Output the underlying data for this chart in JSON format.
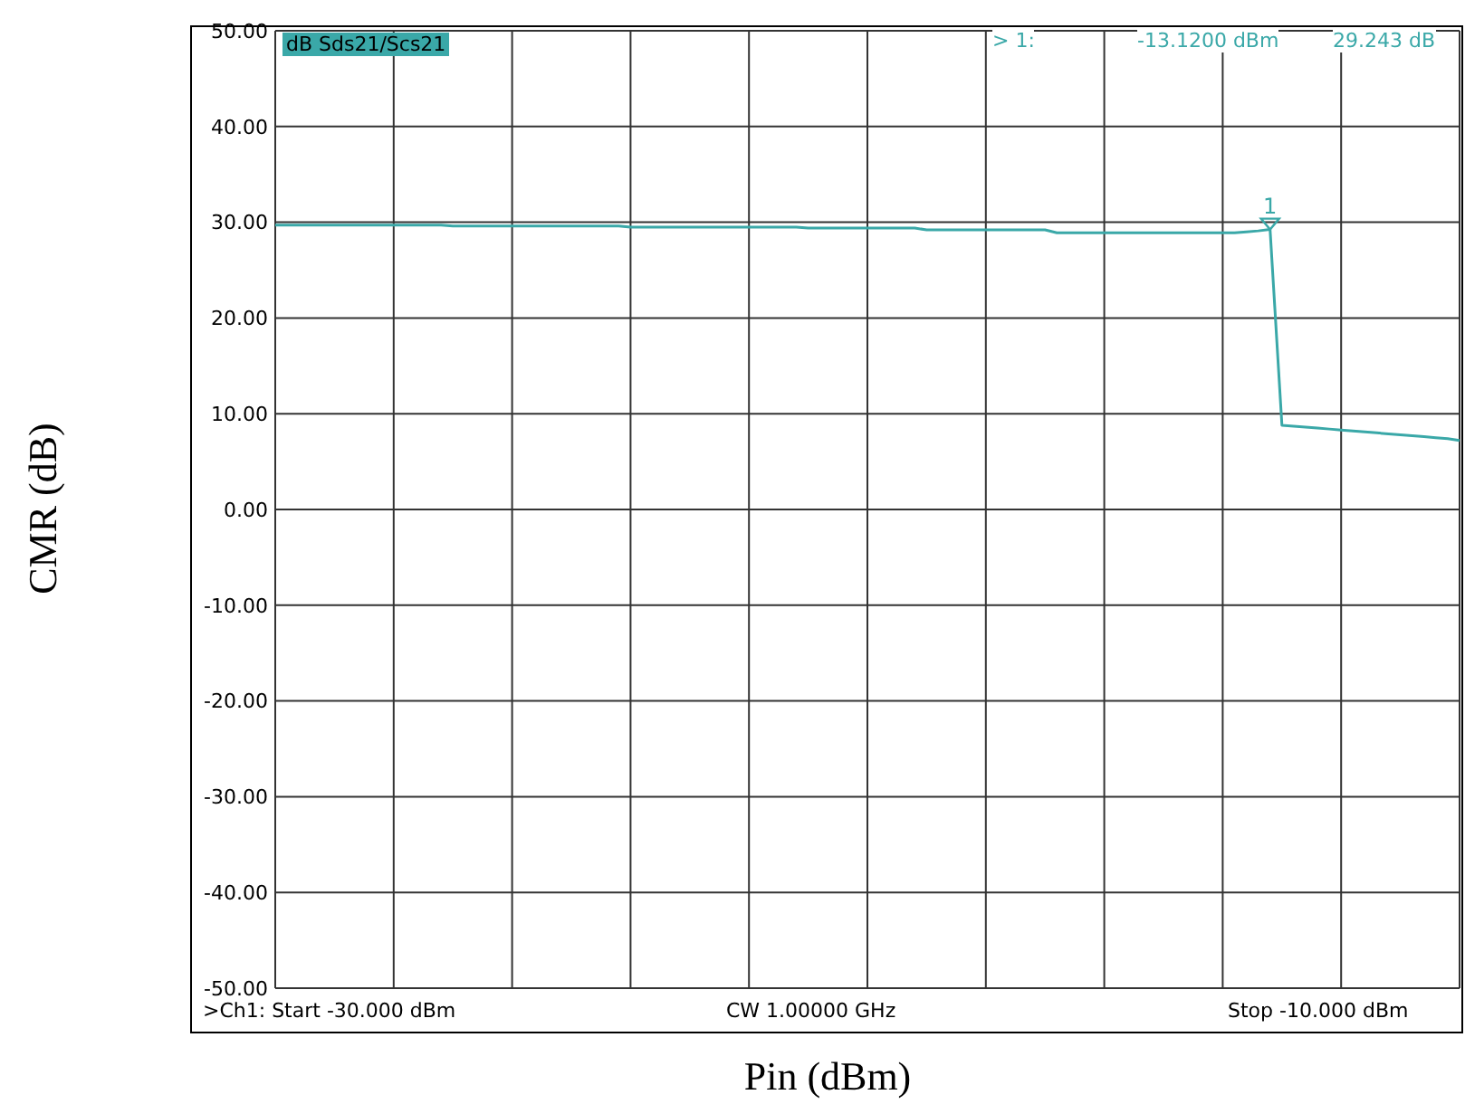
{
  "chart_data": {
    "type": "line",
    "xlabel": "Pin (dBm)",
    "ylabel": "CMR (dB)",
    "categories": [
      null,
      null,
      null,
      null,
      null,
      null,
      null,
      null,
      null,
      null,
      null,
      null,
      null,
      null,
      null,
      null,
      null,
      null,
      null,
      null,
      null,
      null,
      null,
      null,
      null,
      null,
      null,
      null,
      null,
      null,
      null,
      null,
      null,
      null,
      null,
      null,
      null,
      null,
      null,
      null,
      null,
      null,
      null,
      null,
      null,
      null,
      null,
      null,
      null,
      null,
      null,
      null,
      null,
      null,
      null,
      null,
      null,
      null,
      null,
      null,
      null,
      null,
      null,
      null,
      null,
      null,
      null,
      null,
      null,
      null,
      null,
      null,
      null,
      null,
      null,
      null,
      null,
      null,
      null,
      null,
      null,
      null,
      null,
      null,
      null,
      null,
      null,
      null,
      null,
      null,
      null,
      null,
      null,
      null,
      null,
      null,
      null,
      null,
      null,
      null,
      null
    ],
    "series": [
      {
        "color": "#3aa8a8",
        "values": [
          29.7,
          29.7,
          29.7,
          29.7,
          29.7,
          29.7,
          29.7,
          29.7,
          29.7,
          29.7,
          29.7,
          29.7,
          29.7,
          29.7,
          29.7,
          29.6,
          29.6,
          29.6,
          29.6,
          29.6,
          29.6,
          29.6,
          29.6,
          29.6,
          29.6,
          29.6,
          29.6,
          29.6,
          29.6,
          29.6,
          29.5,
          29.5,
          29.5,
          29.5,
          29.5,
          29.5,
          29.5,
          29.5,
          29.5,
          29.5,
          29.5,
          29.5,
          29.5,
          29.5,
          29.5,
          29.4,
          29.4,
          29.4,
          29.4,
          29.4,
          29.4,
          29.4,
          29.4,
          29.4,
          29.4,
          29.2,
          29.2,
          29.2,
          29.2,
          29.2,
          29.2,
          29.2,
          29.2,
          29.2,
          29.2,
          29.2,
          28.9,
          28.9,
          28.9,
          28.9,
          28.9,
          28.9,
          28.9,
          28.9,
          28.9,
          28.9,
          28.9,
          28.9,
          28.9,
          28.9,
          28.9,
          28.9,
          29.0,
          29.1,
          29.243,
          8.8,
          8.7,
          8.6,
          8.5,
          8.4,
          8.3,
          8.2,
          8.1,
          8.0,
          7.9,
          7.8,
          7.7,
          7.6,
          7.5,
          7.4,
          7.2
        ]
      }
    ],
    "ylim": [
      -50,
      50
    ],
    "yticks": [
      {
        "value": -50,
        "label": "-50.00"
      },
      {
        "value": -40,
        "label": "-40.00"
      },
      {
        "value": -30,
        "label": "-30.00"
      },
      {
        "value": -20,
        "label": "-20.00"
      },
      {
        "value": -10,
        "label": "-10.00"
      },
      {
        "value": 0,
        "label": "0.00"
      },
      {
        "value": 10,
        "label": "10.00"
      },
      {
        "value": 20,
        "label": "20.00"
      },
      {
        "value": 30,
        "label": "30.00"
      },
      {
        "value": 40,
        "label": "40.00"
      },
      {
        "value": 50,
        "label": "50.00"
      }
    ],
    "tick_labels": "y",
    "grid": true,
    "marker": "none",
    "line_style": "solid",
    "annotations": [
      "dB Sds21/Scs21",
      "> 1:",
      "-13.1200 dBm",
      "29.243 dB",
      ">Ch1: Start -30.000 dBm",
      "CW 1.00000 GHz",
      "Stop -10.000 dBm",
      {
        "text": "1",
        "y": 29.243
      }
    ]
  }
}
